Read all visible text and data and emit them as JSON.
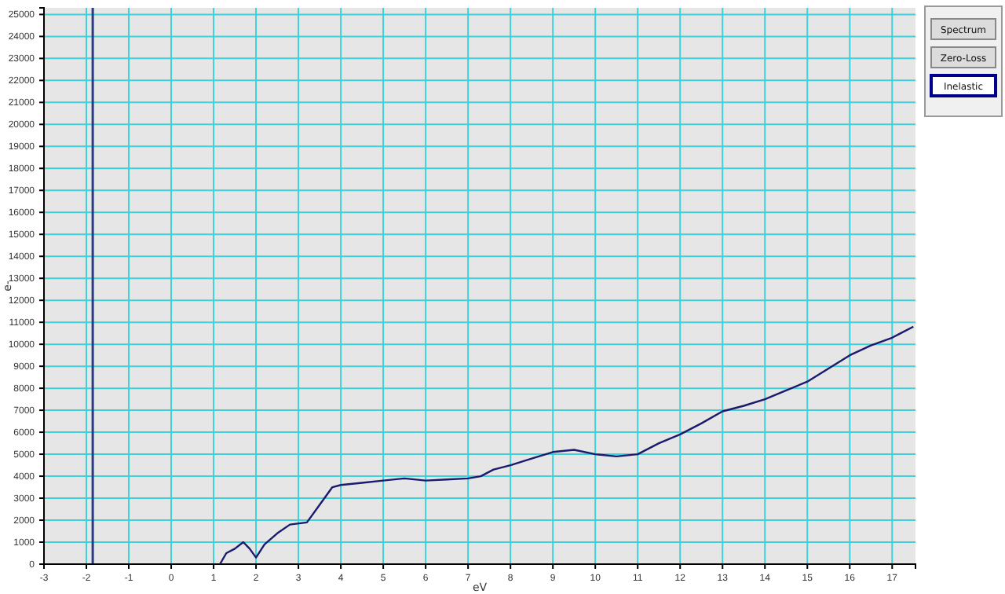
{
  "chart_data": {
    "type": "line",
    "xlabel": "eV",
    "ylabel": "e-",
    "xlim": [
      -3,
      17.55
    ],
    "xticks": [
      -3,
      -2,
      -1,
      0,
      1,
      2,
      3,
      4,
      5,
      6,
      7,
      8,
      9,
      10,
      11,
      12,
      13,
      14,
      15,
      16,
      17
    ],
    "ylim": [
      0,
      25300
    ],
    "yticks": [
      0,
      1000,
      2000,
      3000,
      4000,
      5000,
      6000,
      7000,
      8000,
      9000,
      10000,
      11000,
      12000,
      13000,
      14000,
      15000,
      16000,
      17000,
      18000,
      19000,
      20000,
      21000,
      22000,
      23000,
      24000,
      25000
    ],
    "grid": true,
    "marker": "none",
    "line_style": "solid",
    "ref_lines": [
      {
        "axis": "x",
        "value": -1.85,
        "label": null,
        "color": "#2a3a8a"
      }
    ],
    "annotations": [
      "Spectrum",
      "Zero-Loss",
      "Inelastic"
    ],
    "series": [
      {
        "color": "#1a1a6e",
        "x": [
          1.15,
          1.3,
          1.5,
          1.7,
          1.85,
          2.0,
          2.2,
          2.5,
          2.8,
          3.2,
          3.5,
          3.8,
          4.0,
          4.5,
          5.0,
          5.5,
          6.0,
          6.5,
          7.0,
          7.3,
          7.6,
          8.0,
          8.5,
          9.0,
          9.5,
          10.0,
          10.5,
          11.0,
          11.5,
          12.0,
          12.5,
          13.0,
          13.5,
          14.0,
          14.5,
          15.0,
          15.5,
          16.0,
          16.5,
          17.0,
          17.2,
          17.5
        ],
        "values": [
          0,
          500,
          700,
          1000,
          700,
          300,
          900,
          1400,
          1800,
          1900,
          2700,
          3500,
          3600,
          3700,
          3800,
          3900,
          3800,
          3850,
          3900,
          4000,
          4300,
          4500,
          4800,
          5100,
          5200,
          5000,
          4900,
          5000,
          5500,
          5900,
          6400,
          6950,
          7200,
          7500,
          7900,
          8300,
          8900,
          9500,
          9950,
          10300,
          10500,
          10800
        ]
      }
    ]
  }
}
